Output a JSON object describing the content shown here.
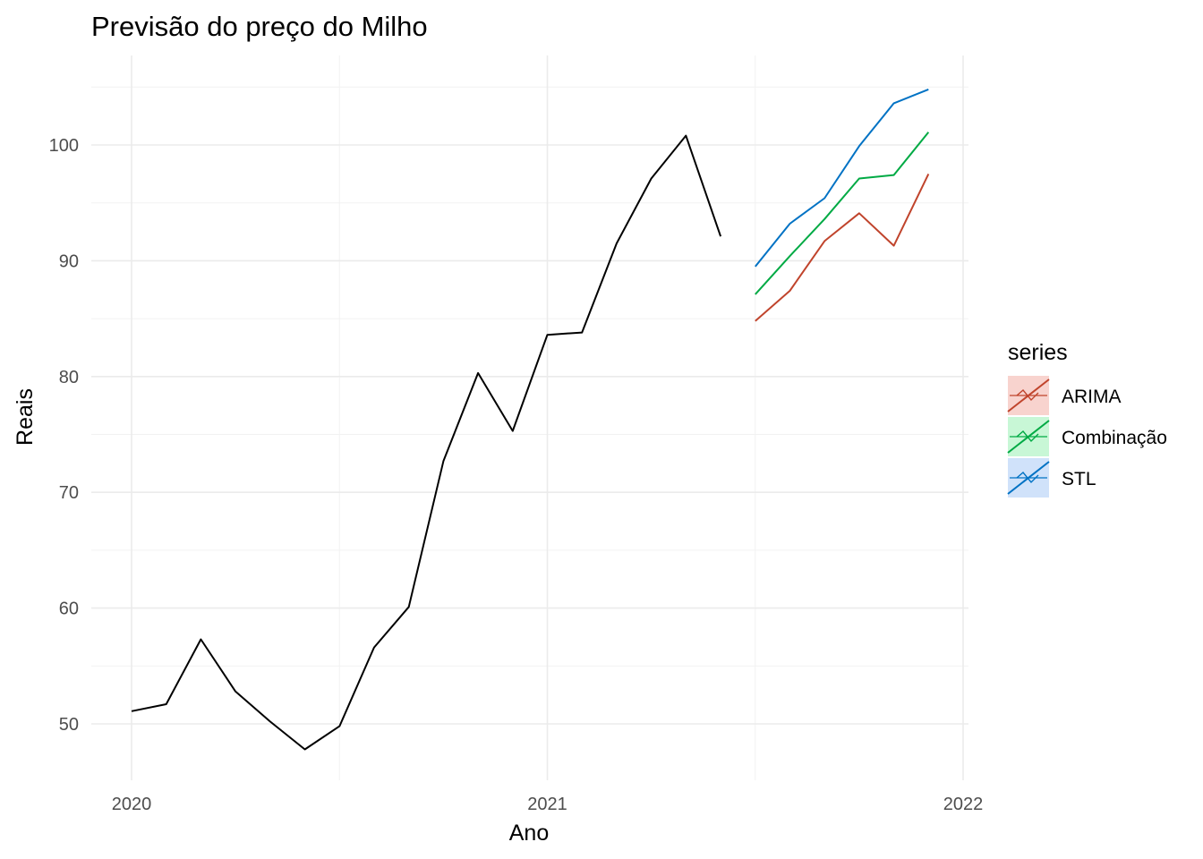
{
  "chart_data": {
    "type": "line",
    "title": "Previsão do preço do Milho",
    "xlabel": "Ano",
    "ylabel": "Reais",
    "xlim": [
      2020,
      2022
    ],
    "ylim": [
      45,
      106
    ],
    "x_ticks": [
      2020,
      2021,
      2022
    ],
    "x_tick_labels": [
      "2020",
      "2021",
      "2022"
    ],
    "y_ticks": [
      50,
      60,
      70,
      80,
      90,
      100
    ],
    "y_tick_labels": [
      "50",
      "60",
      "70",
      "80",
      "90",
      "100"
    ],
    "grid": true,
    "legend": {
      "title": "series",
      "position": "right"
    },
    "history": {
      "color": "#000000",
      "x": [
        2020.0,
        2020.0833,
        2020.1667,
        2020.25,
        2020.3333,
        2020.4167,
        2020.5,
        2020.5833,
        2020.6667,
        2020.75,
        2020.8333,
        2020.9167,
        2021.0,
        2021.0833,
        2021.1667,
        2021.25,
        2021.3333,
        2021.4167
      ],
      "values": [
        51.1,
        51.7,
        57.3,
        52.8,
        50.2,
        47.8,
        49.8,
        56.6,
        60.1,
        72.7,
        80.3,
        75.3,
        83.6,
        83.8,
        91.5,
        97.1,
        100.8,
        92.1
      ]
    },
    "x": [
      2021.5,
      2021.5833,
      2021.6667,
      2021.75,
      2021.8333,
      2021.9167
    ],
    "series": [
      {
        "name": "ARIMA",
        "color": "#c0442c",
        "values": [
          84.8,
          87.4,
          91.7,
          94.1,
          91.3,
          97.5
        ]
      },
      {
        "name": "Combinação",
        "color": "#00aa44",
        "values": [
          87.1,
          90.4,
          93.6,
          97.1,
          97.4,
          101.1
        ]
      },
      {
        "name": "STL",
        "color": "#0072c4",
        "values": [
          89.5,
          93.2,
          95.4,
          99.9,
          103.6,
          104.8
        ]
      }
    ]
  }
}
